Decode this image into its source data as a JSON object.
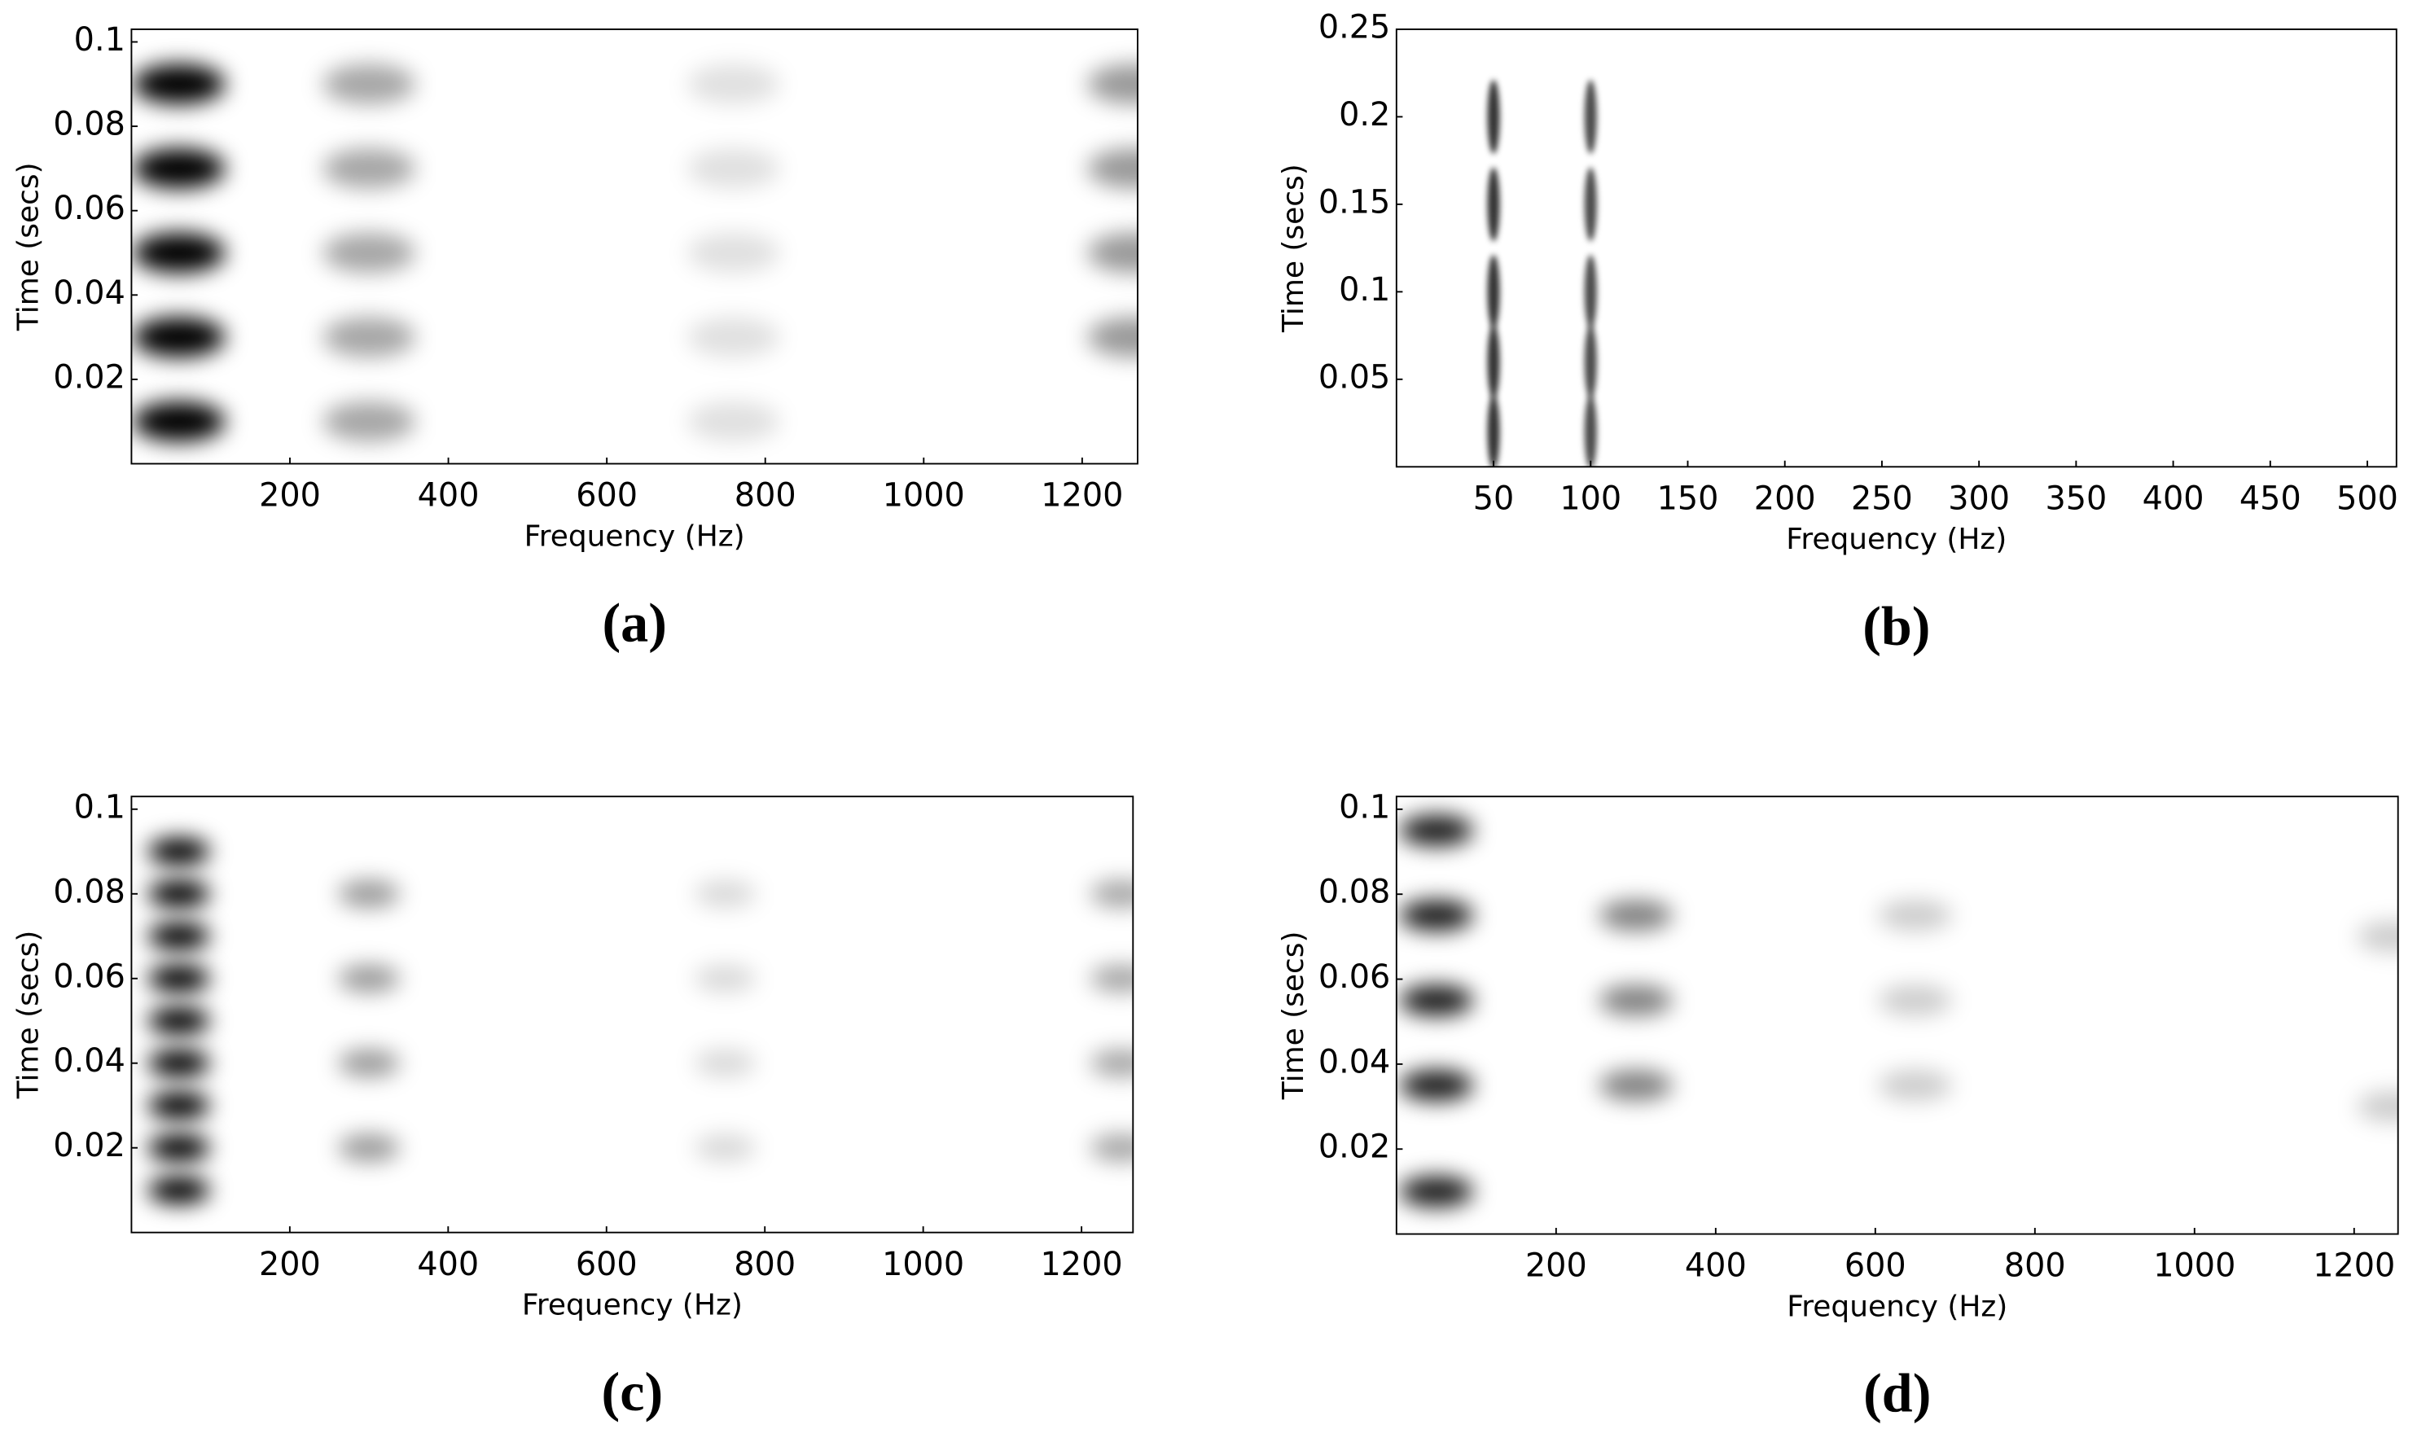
{
  "chart_data": [
    {
      "type": "spectrogram",
      "panel_label": "(a)",
      "xlabel": "Frequency (Hz)",
      "ylabel": "Time (secs)",
      "color": "#000000",
      "xlim": [
        0,
        1270
      ],
      "ylim": [
        0,
        0.103
      ],
      "xticks": [
        200,
        400,
        600,
        800,
        1000,
        1200
      ],
      "yticks": [
        0.02,
        0.04,
        0.06,
        0.08,
        0.1
      ],
      "x": [
        60,
        60,
        60,
        60,
        60,
        300,
        300,
        300,
        300,
        300,
        760,
        760,
        760,
        760,
        760,
        1265,
        1265,
        1265,
        1265
      ],
      "y": [
        0.01,
        0.03,
        0.05,
        0.07,
        0.09,
        0.01,
        0.03,
        0.05,
        0.07,
        0.09,
        0.01,
        0.03,
        0.05,
        0.07,
        0.09,
        0.03,
        0.05,
        0.07,
        0.09
      ],
      "z": [
        1,
        1,
        1,
        1,
        1,
        0.35,
        0.35,
        0.35,
        0.35,
        0.35,
        0.12,
        0.12,
        0.12,
        0.12,
        0.12,
        0.4,
        0.4,
        0.4,
        0.4
      ]
    },
    {
      "type": "spectrogram",
      "panel_label": "(b)",
      "xlabel": "Frequency (Hz)",
      "ylabel": "Time (secs)",
      "color": "#000000",
      "xlim": [
        0,
        515
      ],
      "ylim": [
        0,
        0.25
      ],
      "xticks": [
        50,
        100,
        150,
        200,
        250,
        300,
        350,
        400,
        450,
        500
      ],
      "yticks": [
        0.05,
        0.1,
        0.15,
        0.2,
        0.25
      ],
      "x": [
        50,
        50,
        50,
        50,
        50,
        100,
        100,
        100,
        100,
        100
      ],
      "y": [
        0.02,
        0.06,
        0.1,
        0.15,
        0.2,
        0.02,
        0.06,
        0.1,
        0.15,
        0.2
      ],
      "z": [
        0.8,
        0.8,
        0.8,
        0.8,
        0.8,
        0.7,
        0.7,
        0.7,
        0.7,
        0.7
      ]
    },
    {
      "type": "spectrogram",
      "panel_label": "(c)",
      "xlabel": "Frequency (Hz)",
      "ylabel": "Time (secs)",
      "color": "#000000",
      "xlim": [
        0,
        1265
      ],
      "ylim": [
        0,
        0.103
      ],
      "xticks": [
        200,
        400,
        600,
        800,
        1000,
        1200
      ],
      "yticks": [
        0.02,
        0.04,
        0.06,
        0.08,
        0.1
      ],
      "x": [
        60,
        60,
        60,
        60,
        60,
        60,
        60,
        60,
        60,
        300,
        300,
        300,
        300,
        750,
        750,
        750,
        750,
        1250,
        1250,
        1250,
        1250
      ],
      "y": [
        0.01,
        0.02,
        0.03,
        0.04,
        0.05,
        0.06,
        0.07,
        0.08,
        0.09,
        0.02,
        0.04,
        0.06,
        0.08,
        0.02,
        0.04,
        0.06,
        0.08,
        0.02,
        0.04,
        0.06,
        0.08
      ],
      "z": [
        1,
        1,
        1,
        1,
        1,
        1,
        1,
        1,
        1,
        0.4,
        0.4,
        0.4,
        0.4,
        0.15,
        0.15,
        0.15,
        0.15,
        0.35,
        0.35,
        0.35,
        0.35
      ]
    },
    {
      "type": "spectrogram",
      "panel_label": "(d)",
      "xlabel": "Frequency (Hz)",
      "ylabel": "Time (secs)",
      "color": "#000000",
      "xlim": [
        0,
        1255
      ],
      "ylim": [
        0,
        0.103
      ],
      "xticks": [
        200,
        400,
        600,
        800,
        1000,
        1200
      ],
      "yticks": [
        0.02,
        0.04,
        0.06,
        0.08,
        0.1
      ],
      "x": [
        50,
        50,
        50,
        50,
        50,
        300,
        300,
        300,
        650,
        650,
        650,
        1250,
        1250
      ],
      "y": [
        0.01,
        0.035,
        0.055,
        0.075,
        0.095,
        0.035,
        0.055,
        0.075,
        0.035,
        0.055,
        0.075,
        0.03,
        0.07
      ],
      "z": [
        0.9,
        0.9,
        0.9,
        0.9,
        0.9,
        0.5,
        0.5,
        0.5,
        0.2,
        0.2,
        0.2,
        0.2,
        0.2
      ]
    }
  ]
}
